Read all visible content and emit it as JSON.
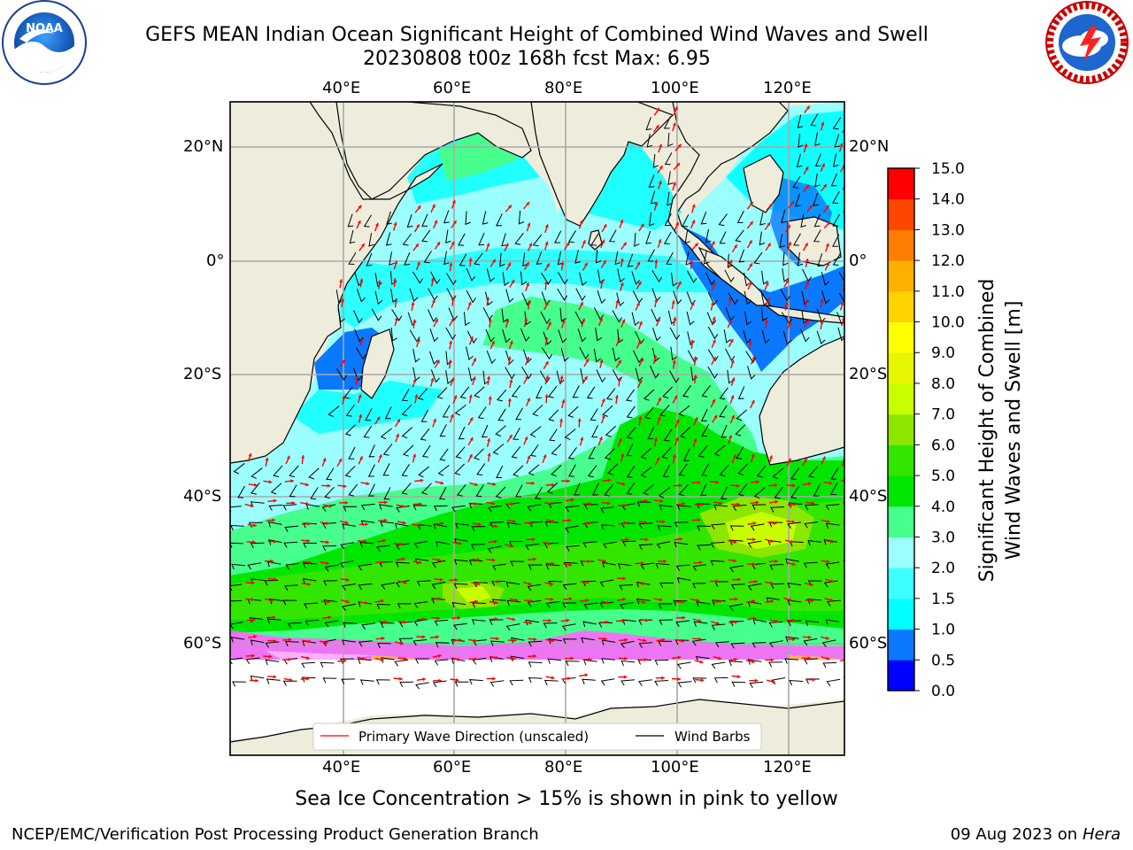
{
  "header": {
    "title_line1": "GEFS MEAN Indian Ocean Significant Height of Combined Wind Waves and Swell",
    "title_line2": "20230808 t00z 168h fcst   Max: 6.95"
  },
  "logos": {
    "left": {
      "name": "noaa-logo",
      "text": "NOAA"
    },
    "right": {
      "name": "nws-logo",
      "text": "NATIONAL WEATHER SERVICE"
    }
  },
  "map": {
    "lon_labels": [
      "40°E",
      "60°E",
      "80°E",
      "100°E",
      "120°E"
    ],
    "lat_labels": [
      "20°N",
      "0°",
      "20°S",
      "40°S",
      "60°S"
    ],
    "legend": {
      "wave_direction": "Primary Wave Direction (unscaled)",
      "wind_barbs": "Wind Barbs"
    }
  },
  "colorbar": {
    "title_line1": "Significant Height of Combined",
    "title_line2": "Wind Waves and Swell [m]",
    "ticks": [
      "0.0",
      "0.5",
      "1.0",
      "1.5",
      "2.0",
      "3.0",
      "4.0",
      "5.0",
      "6.0",
      "7.0",
      "8.0",
      "9.0",
      "10.0",
      "11.0",
      "12.0",
      "13.0",
      "14.0",
      "15.0"
    ],
    "colors": [
      "#0000ff",
      "#0a78ff",
      "#00ffff",
      "#3cffff",
      "#9bffff",
      "#46ff8c",
      "#00e600",
      "#32e600",
      "#8ce600",
      "#c8ff00",
      "#e6f500",
      "#ffff00",
      "#ffd200",
      "#ffaf00",
      "#ff7d00",
      "#ff4600",
      "#ff0000"
    ]
  },
  "sea_ice_note": "Sea Ice Concentration > 15% is shown in pink to yellow",
  "footer": {
    "left": "NCEP/EMC/Verification Post Processing Product Generation Branch",
    "date": "09 Aug 2023 on",
    "host": "Hera"
  }
}
